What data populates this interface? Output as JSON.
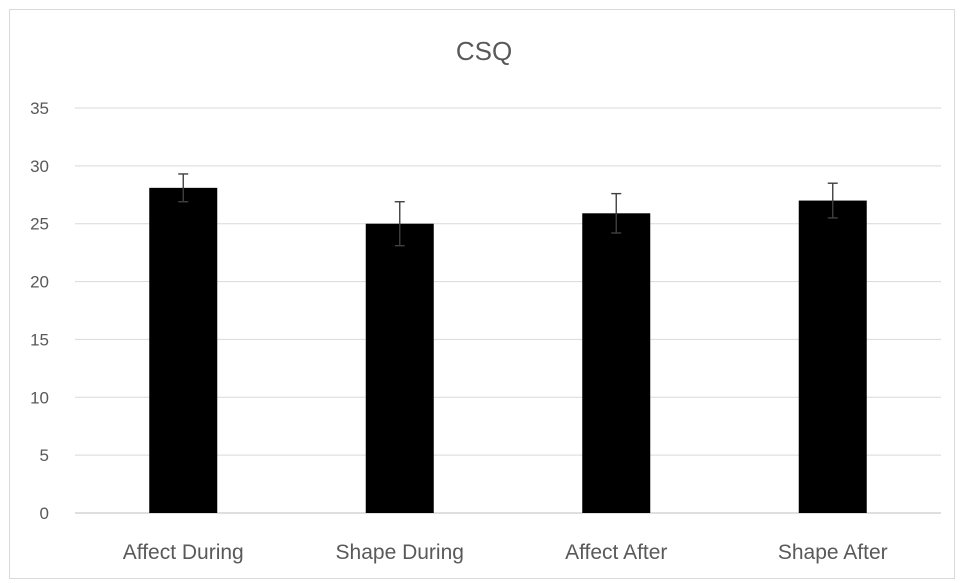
{
  "chart_data": {
    "type": "bar",
    "title": "CSQ",
    "categories": [
      "Affect During",
      "Shape During",
      "Affect After",
      "Shape After"
    ],
    "values": [
      28.1,
      25.0,
      25.9,
      27.0
    ],
    "error": [
      1.2,
      1.9,
      1.7,
      1.5
    ],
    "ylim": [
      0,
      35
    ],
    "yticks": [
      0,
      5,
      10,
      15,
      20,
      25,
      30,
      35
    ],
    "ytick_labels": [
      "0",
      "5",
      "10",
      "15",
      "20",
      "25",
      "30",
      "35"
    ],
    "xlabel": "",
    "ylabel": "",
    "grid": true,
    "legend": "none",
    "bar_color": "#000000"
  }
}
